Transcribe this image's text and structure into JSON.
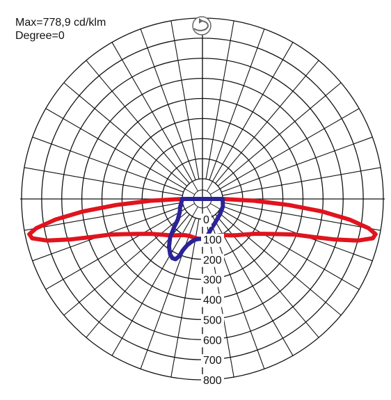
{
  "info": {
    "max_label": "Max=778,9 cd/klm",
    "degree_label": "Degree=0"
  },
  "chart_data": {
    "type": "polar",
    "rlim": [
      0,
      800
    ],
    "radial_ticks": [
      "0",
      "100",
      "200",
      "300",
      "400",
      "500",
      "600",
      "700",
      "800"
    ],
    "radial_tick_values": [
      0,
      100,
      200,
      300,
      400,
      500,
      600,
      700,
      800
    ],
    "grid": true,
    "angular_grid_step_deg": 10,
    "colors": {
      "grid": "#111111",
      "c0_plane": "#e0141e",
      "c90_plane": "#2a2398"
    },
    "series": [
      {
        "color": "#e0141e",
        "points": [
          [
            -90,
            0
          ],
          [
            -88,
            160
          ],
          [
            -86,
            330
          ],
          [
            -84,
            500
          ],
          [
            -82,
            640
          ],
          [
            -80,
            740
          ],
          [
            -78.5,
            779
          ],
          [
            -77,
            770
          ],
          [
            -75,
            700
          ],
          [
            -73,
            590
          ],
          [
            -71,
            480
          ],
          [
            -69,
            395
          ],
          [
            -66,
            330
          ],
          [
            -62,
            270
          ],
          [
            -56,
            210
          ],
          [
            -50,
            175
          ],
          [
            -44,
            150
          ],
          [
            -38,
            130
          ],
          [
            -32,
            112
          ],
          [
            -26,
            100
          ],
          [
            -20,
            95
          ],
          [
            -14,
            96
          ],
          [
            -8,
            98
          ],
          [
            0,
            100
          ],
          [
            8,
            98
          ],
          [
            14,
            96
          ],
          [
            20,
            95
          ],
          [
            26,
            100
          ],
          [
            32,
            112
          ],
          [
            38,
            130
          ],
          [
            44,
            150
          ],
          [
            50,
            175
          ],
          [
            56,
            210
          ],
          [
            62,
            270
          ],
          [
            66,
            330
          ],
          [
            69,
            395
          ],
          [
            71,
            480
          ],
          [
            73,
            590
          ],
          [
            75,
            700
          ],
          [
            77,
            770
          ],
          [
            78.5,
            779
          ],
          [
            80,
            740
          ],
          [
            82,
            640
          ],
          [
            84,
            500
          ],
          [
            86,
            330
          ],
          [
            88,
            160
          ],
          [
            90,
            0
          ]
        ]
      },
      {
        "color": "#2a2398",
        "points": [
          [
            -90,
            0
          ],
          [
            -70,
            18
          ],
          [
            -60,
            30
          ],
          [
            -50,
            60
          ],
          [
            -45,
            100
          ],
          [
            -40,
            150
          ],
          [
            -35,
            190
          ],
          [
            -30,
            220
          ],
          [
            -27,
            230
          ],
          [
            -24,
            228
          ],
          [
            -22,
            205
          ],
          [
            -21,
            175
          ],
          [
            -20,
            160
          ],
          [
            -18,
            140
          ],
          [
            -14,
            118
          ],
          [
            -10,
            105
          ],
          [
            -6,
            100
          ],
          [
            -2,
            98
          ],
          [
            2,
            95
          ],
          [
            6,
            88
          ],
          [
            10,
            75
          ],
          [
            16,
            55
          ],
          [
            24,
            40
          ],
          [
            35,
            25
          ],
          [
            50,
            15
          ],
          [
            70,
            8
          ],
          [
            90,
            0
          ]
        ]
      }
    ]
  }
}
